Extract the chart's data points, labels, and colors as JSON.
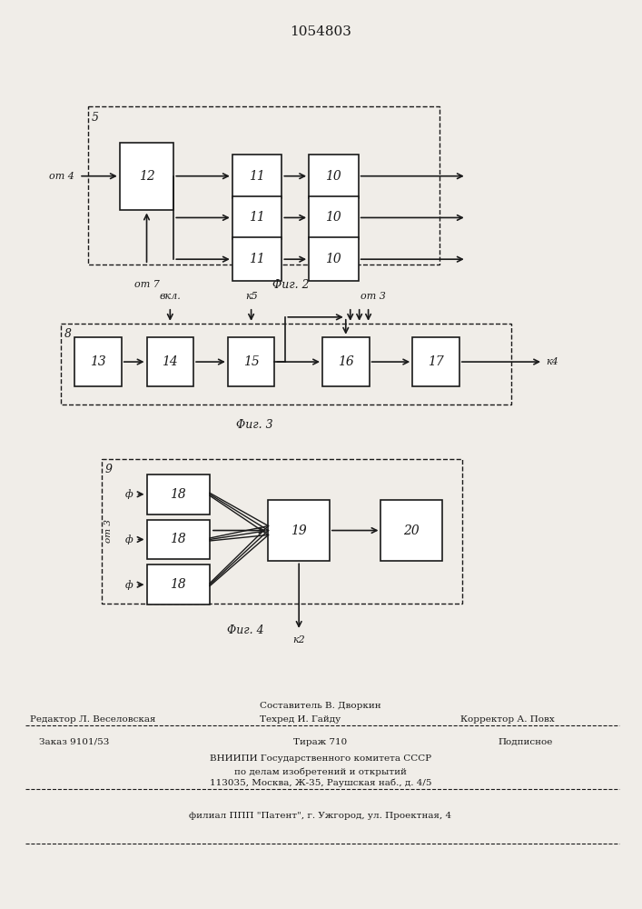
{
  "title": "1054803",
  "bg_color": "#f0ede8",
  "line_color": "#1a1a1a",
  "box_color": "#ffffff",
  "footer": {
    "line1_center": "Составитель В. Дворкин",
    "line1_left": "Редактор Л. Веселовская",
    "line1_center2": "Техред И. Гайду",
    "line1_right": "Корректор А. Повх",
    "line2_left": "Заказ 9101/53",
    "line2_center": "Тираж 710",
    "line2_right": "Подписное",
    "line3": "ВНИИПИ Государственного комитета СССР",
    "line4": "по делам изобретений и открытий",
    "line5": "113035, Москва, Ж-35, Раушская наб., д. 4/5",
    "line6": "филиал ППП \"Патент\", г. Ужгород, ул. Проектная, 4"
  }
}
